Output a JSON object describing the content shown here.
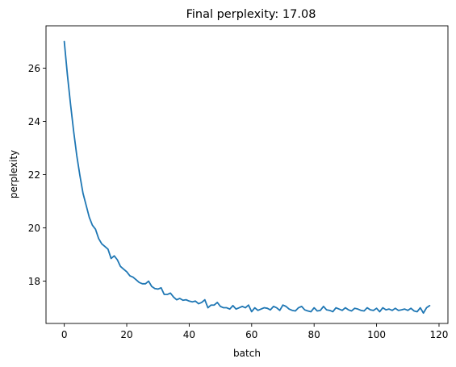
{
  "chart_data": {
    "type": "line",
    "title": "Final perplexity: 17.08",
    "xlabel": "batch",
    "ylabel": "perplexity",
    "xlim": [
      -5.85,
      122.85
    ],
    "ylim": [
      16.41,
      27.59
    ],
    "xticks": [
      0,
      20,
      40,
      60,
      80,
      100,
      120
    ],
    "yticks": [
      18,
      20,
      22,
      24,
      26
    ],
    "grid": false,
    "line_color": "#1f77b4",
    "series": [
      {
        "values": [
          27.0,
          25.75,
          24.65,
          23.63,
          22.72,
          21.97,
          21.3,
          20.85,
          20.4,
          20.1,
          19.95,
          19.6,
          19.4,
          19.3,
          19.2,
          18.85,
          18.95,
          18.8,
          18.55,
          18.45,
          18.35,
          18.2,
          18.15,
          18.05,
          17.95,
          17.9,
          17.9,
          18.0,
          17.8,
          17.72,
          17.7,
          17.75,
          17.5,
          17.5,
          17.55,
          17.4,
          17.3,
          17.35,
          17.28,
          17.3,
          17.25,
          17.22,
          17.25,
          17.15,
          17.2,
          17.3,
          17.0,
          17.1,
          17.1,
          17.2,
          17.05,
          17.0,
          17.0,
          16.95,
          17.08,
          16.95,
          17.0,
          17.05,
          17.0,
          17.1,
          16.85,
          17.0,
          16.9,
          16.95,
          17.0,
          16.98,
          16.92,
          17.05,
          17.0,
          16.9,
          17.1,
          17.05,
          16.95,
          16.9,
          16.88,
          17.0,
          17.05,
          16.92,
          16.88,
          16.85,
          17.0,
          16.88,
          16.9,
          17.05,
          16.92,
          16.9,
          16.85,
          17.0,
          16.95,
          16.9,
          17.0,
          16.92,
          16.88,
          16.98,
          16.95,
          16.9,
          16.88,
          17.0,
          16.92,
          16.9,
          16.98,
          16.85,
          17.0,
          16.92,
          16.95,
          16.9,
          16.98,
          16.9,
          16.92,
          16.95,
          16.9,
          16.98,
          16.88,
          16.85,
          17.0,
          16.8,
          17.0,
          17.08
        ]
      }
    ]
  }
}
